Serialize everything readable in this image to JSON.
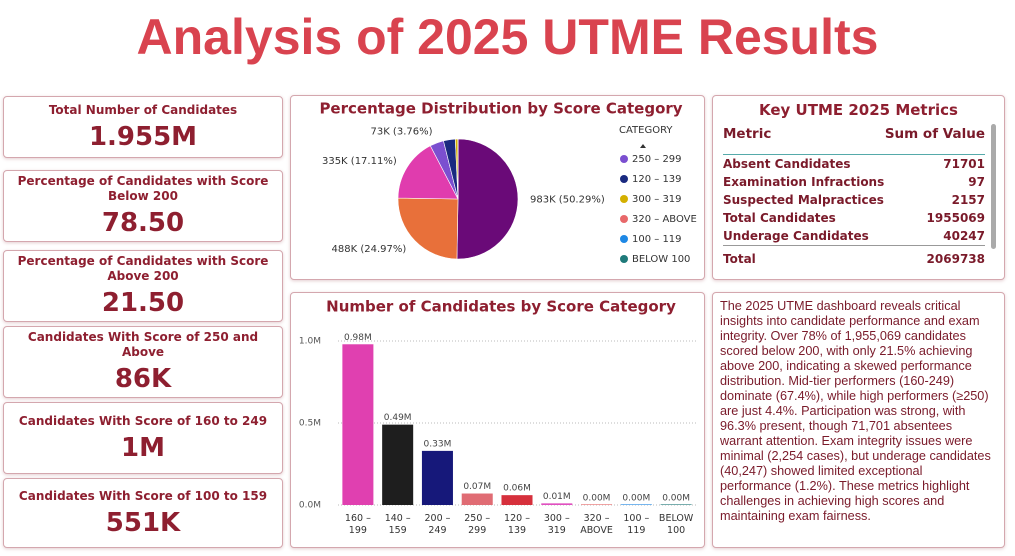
{
  "header": {
    "title": "Analysis of 2025 UTME Results"
  },
  "kpis": [
    {
      "label": "Total Number of Candidates",
      "value": "1.955M"
    },
    {
      "label": "Percentage of Candidates with Score Below 200",
      "value": "78.50"
    },
    {
      "label": "Percentage of Candidates with Score Above 200",
      "value": "21.50"
    },
    {
      "label": "Candidates With Score of 250 and Above",
      "value": "86K"
    },
    {
      "label": "Candidates With Score of 160 to 249",
      "value": "1M"
    },
    {
      "label": "Candidates With Score of 100 to 159",
      "value": "551K"
    }
  ],
  "chart_data": [
    {
      "type": "pie",
      "title": "Percentage Distribution by Score Category",
      "legend_title": "CATEGORY",
      "categories": [
        null,
        null,
        null,
        "250 – 299",
        "120 – 139",
        "300 – 319",
        "320 – ABOVE",
        "100 – 119",
        "BELOW 100"
      ],
      "values": [
        983000,
        488000,
        335000,
        73000,
        62000,
        13000,
        600,
        300,
        200
      ],
      "value_labels": [
        "983K (50.29%)",
        "488K (24.97%)",
        "335K (17.11%)",
        "73K (3.76%)",
        null,
        null,
        null,
        null,
        null
      ],
      "colors": [
        "#6a0a78",
        "#e8703a",
        "#e03cae",
        "#7b4fd0",
        "#1a2a80",
        "#d4b000",
        "#e8686a",
        "#1e88e5",
        "#1f7a7a"
      ]
    },
    {
      "type": "bar",
      "title": "Number of Candidates by Score Category",
      "categories": [
        "160 – 199",
        "140 – 159",
        "200 – 249",
        "250 – 299",
        "120 – 139",
        "300 – 319",
        "320 – ABOVE",
        "100 – 119",
        "BELOW 100"
      ],
      "values": [
        980000,
        490000,
        330000,
        70000,
        60000,
        10000,
        600,
        300,
        200
      ],
      "value_labels": [
        "0.98M",
        "0.49M",
        "0.33M",
        "0.07M",
        "0.06M",
        "0.01M",
        "0.00M",
        "0.00M",
        "0.00M"
      ],
      "colors": [
        "#e040b0",
        "#1e1e1e",
        "#16187a",
        "#e06c74",
        "#d6303c",
        "#e050c0",
        "#e8686a",
        "#1e88e5",
        "#1f7a7a"
      ],
      "ylim": [
        0,
        1000000
      ],
      "yticks": [
        {
          "value": 0,
          "label": "0.0M"
        },
        {
          "value": 500000,
          "label": "0.5M"
        },
        {
          "value": 1000000,
          "label": "1.0M"
        }
      ],
      "grid": true
    }
  ],
  "table": {
    "title": "Key UTME 2025 Metrics",
    "columns": [
      "Metric",
      "Sum of Value"
    ],
    "rows": [
      [
        "Absent Candidates",
        "71701"
      ],
      [
        "Examination Infractions",
        "97"
      ],
      [
        "Suspected Malpractices",
        "2157"
      ],
      [
        "Total Candidates",
        "1955069"
      ],
      [
        "Underage Candidates",
        "40247"
      ]
    ],
    "total": [
      "Total",
      "2069738"
    ]
  },
  "summary": "The 2025 UTME dashboard reveals critical insights into candidate performance and exam integrity. Over 78% of 1,955,069 candidates scored below 200, with only 21.5% achieving above 200, indicating a skewed performance distribution. Mid-tier performers (160-249) dominate (67.4%), while high performers (≥250) are just 4.4%. Participation was strong, with 96.3% present, though 71,701 absentees warrant attention. Exam integrity issues were minimal (2,254 cases), but underage candidates (40,247) showed limited exceptional performance (1.2%). These metrics highlight challenges in achieving high scores and maintaining exam fairness."
}
